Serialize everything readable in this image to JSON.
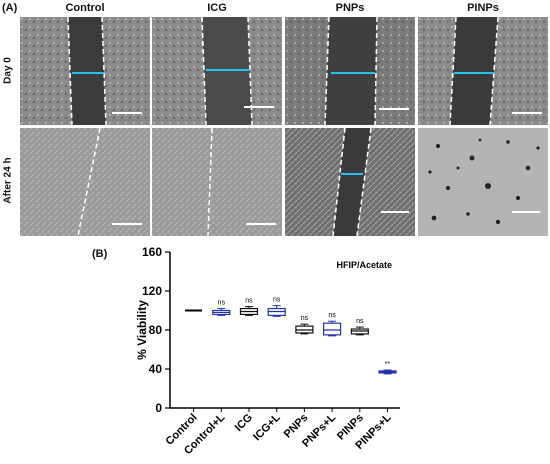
{
  "panel_a": {
    "label": "(A)",
    "columns": [
      "Control",
      "ICG",
      "PNPs",
      "PINPs"
    ],
    "rows": [
      "Day 0",
      "After 24 h"
    ]
  },
  "panel_b": {
    "label": "(B)"
  },
  "chart_data": {
    "type": "box",
    "title": "",
    "annotation": "HFIP/Acetate",
    "ylabel": "% Viability",
    "xlabel": "",
    "ylim": [
      0,
      160
    ],
    "yticks": [
      0,
      40,
      80,
      120,
      160
    ],
    "categories": [
      "Control",
      "Control+L",
      "ICG",
      "ICG+L",
      "PNPs",
      "PNPs+L",
      "PINPs",
      "PINPs+L"
    ],
    "boxes": [
      {
        "min": 100,
        "q1": 100,
        "median": 100,
        "q3": 100,
        "max": 100,
        "color": "#000000",
        "sig": ""
      },
      {
        "min": 95,
        "q1": 96,
        "median": 98,
        "q3": 100,
        "max": 102,
        "color": "#2233aa",
        "sig": "ns"
      },
      {
        "min": 95,
        "q1": 96,
        "median": 99,
        "q3": 102,
        "max": 104,
        "color": "#111111",
        "sig": "ns"
      },
      {
        "min": 94,
        "q1": 95,
        "median": 99,
        "q3": 102,
        "max": 105,
        "color": "#2233aa",
        "sig": "ns"
      },
      {
        "min": 76,
        "q1": 77,
        "median": 80,
        "q3": 84,
        "max": 86,
        "color": "#111111",
        "sig": "ns"
      },
      {
        "min": 74,
        "q1": 75,
        "median": 80,
        "q3": 87,
        "max": 89,
        "color": "#2233aa",
        "sig": "ns"
      },
      {
        "min": 75,
        "q1": 76,
        "median": 79,
        "q3": 81,
        "max": 83,
        "color": "#111111",
        "sig": "ns"
      },
      {
        "min": 35,
        "q1": 36,
        "median": 37,
        "q3": 38,
        "max": 39,
        "color": "#2233aa",
        "sig": "**"
      }
    ]
  }
}
